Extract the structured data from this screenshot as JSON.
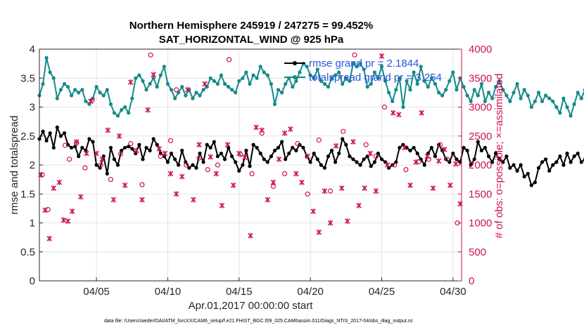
{
  "chart_data": {
    "type": "line",
    "title_line1": "Northern Hemisphere 245919 / 247275 = 99.452%",
    "title_line2": "SAT_HORIZONTAL_WIND @ 925 hPa",
    "xlabel": "Apr.01,2017 00:00:00 start",
    "ylabel_left": "rmse and totalspread",
    "ylabel_right": "# of obs: o=possible; ×=assimilated",
    "xlim": [
      1.0,
      30.6
    ],
    "ylim_left": [
      0,
      4
    ],
    "ylim_right": [
      0,
      4000
    ],
    "x_ticks": [
      5,
      10,
      15,
      20,
      25,
      30
    ],
    "x_tick_labels": [
      "04/05",
      "04/10",
      "04/15",
      "04/20",
      "04/25",
      "04/30"
    ],
    "y_left_ticks": [
      "0",
      "0.5",
      "1",
      "1.5",
      "2",
      "2.5",
      "3",
      "3.5",
      "4"
    ],
    "y_right_ticks": [
      "0",
      "500",
      "1000",
      "1500",
      "2000",
      "2500",
      "3000",
      "3500",
      "4000"
    ],
    "legend": {
      "rmse": "rmse grand pr = 2.1844",
      "spread": "totalspread grand pr = 3.254"
    },
    "footnote": "data file: /Users/raeder/DAI/ATM_forcXX/CAM6_setup/f.e21.FHIST_BGC.f09_025.CAM6assim.011/Diags_NTrS_2017-04/obs_diag_output.nc",
    "colors": {
      "rmse": "#000000",
      "spread": "#148a8a",
      "obs": "#cc1155"
    },
    "grid": true,
    "series": [
      {
        "name": "rmse",
        "axis": "left",
        "x_start": 1.0,
        "x_step": 0.25,
        "values": [
          2.45,
          2.58,
          2.42,
          2.55,
          2.3,
          2.65,
          2.5,
          2.55,
          2.35,
          2.3,
          2.32,
          2.15,
          2.3,
          2.25,
          2.45,
          2.4,
          2.0,
          1.95,
          2.15,
          1.85,
          2.3,
          2.1,
          2.0,
          2.25,
          2.3,
          2.32,
          2.28,
          2.2,
          2.35,
          2.1,
          2.3,
          2.25,
          2.45,
          2.35,
          2.2,
          2.15,
          2.05,
          2.2,
          2.1,
          2.0,
          2.25,
          2.05,
          1.95,
          2.0,
          1.95,
          2.2,
          2.05,
          2.35,
          2.3,
          2.4,
          2.15,
          2.2,
          2.1,
          2.3,
          2.15,
          2.05,
          1.9,
          2.0,
          2.25,
          1.98,
          2.35,
          2.3,
          2.2,
          2.1,
          2.05,
          2.15,
          2.25,
          2.3,
          2.4,
          2.1,
          2.2,
          2.3,
          2.25,
          2.35,
          2.3,
          2.15,
          2.05,
          2.2,
          2.1,
          2.0,
          1.95,
          2.15,
          2.25,
          2.05,
          2.2,
          2.45,
          2.35,
          2.15,
          2.1,
          2.05,
          2.0,
          2.1,
          2.15,
          1.98,
          2.05,
          2.2,
          2.1,
          2.05,
          1.95,
          2.0,
          2.05,
          2.3,
          2.35,
          2.3,
          2.25,
          2.3,
          2.2,
          2.1,
          2.0,
          2.2,
          2.3,
          2.15,
          2.35,
          2.25,
          2.1,
          2.05,
          2.2,
          2.1,
          2.05,
          2.3,
          2.25,
          2.0,
          2.1,
          2.4,
          2.25,
          2.3,
          2.15,
          2.05,
          2.2,
          2.1,
          2.05,
          2.15,
          1.95,
          2.0,
          1.9,
          2.0,
          1.8,
          1.85,
          1.65,
          1.7,
          1.95,
          2.05,
          2.1,
          1.9,
          2.0,
          2.05,
          2.15,
          2.0,
          2.2,
          2.05,
          2.15,
          2.2,
          2.05,
          2.1,
          2.3,
          2.15,
          2.25,
          2.2,
          2.3,
          2.15,
          2.1,
          2.25,
          2.0,
          2.2,
          2.1,
          2.3,
          2.2,
          2.35,
          2.15,
          2.1,
          2.2,
          2.05,
          2.1,
          2.0,
          2.3,
          2.05,
          2.1,
          2.08,
          2.1,
          2.05,
          2.0,
          2.1,
          2.05,
          2.0,
          1.95,
          2.25,
          2.3,
          2.2,
          2.35,
          2.3,
          2.4,
          2.45
        ]
      },
      {
        "name": "totalspread",
        "axis": "left",
        "x_start": 1.0,
        "x_step": 0.25,
        "values": [
          3.2,
          3.4,
          3.85,
          3.6,
          3.5,
          3.15,
          3.3,
          3.4,
          3.35,
          3.2,
          3.3,
          3.25,
          3.3,
          3.1,
          3.05,
          3.15,
          3.35,
          3.25,
          3.2,
          3.3,
          3.05,
          2.9,
          2.85,
          2.95,
          3.0,
          2.9,
          3.15,
          3.5,
          3.55,
          3.45,
          3.3,
          3.4,
          3.5,
          3.35,
          3.55,
          3.7,
          3.4,
          3.3,
          3.15,
          3.25,
          3.35,
          3.2,
          3.3,
          3.15,
          3.25,
          3.2,
          3.3,
          3.35,
          3.5,
          3.45,
          3.4,
          3.55,
          3.4,
          3.35,
          3.3,
          3.25,
          3.45,
          3.5,
          3.6,
          3.4,
          3.55,
          3.5,
          3.7,
          3.6,
          3.55,
          3.4,
          3.05,
          3.3,
          3.25,
          3.4,
          3.5,
          3.35,
          3.45,
          3.6,
          3.75,
          3.7,
          3.55,
          3.5,
          3.65,
          3.45,
          3.4,
          3.35,
          3.5,
          3.55,
          3.6,
          3.4,
          3.5,
          3.45,
          3.75,
          3.7,
          3.75,
          3.65,
          3.35,
          3.4,
          3.6,
          3.5,
          3.7,
          3.45,
          3.25,
          3.1,
          3.3,
          3.5,
          3.0,
          3.45,
          3.3,
          3.6,
          3.4,
          3.7,
          3.45,
          3.35,
          3.5,
          3.4,
          3.25,
          3.2,
          3.3,
          3.45,
          3.6,
          3.3,
          3.5,
          3.35,
          3.2,
          3.1,
          3.3,
          3.2,
          3.4,
          3.1,
          3.25,
          3.15,
          3.35,
          3.45,
          3.3,
          3.2,
          3.1,
          3.25,
          3.4,
          3.15,
          3.3,
          3.2,
          3.0,
          3.1,
          3.25,
          3.1,
          3.2,
          3.15,
          3.1,
          3.0,
          2.9,
          3.15,
          3.0,
          2.85,
          3.05,
          3.25,
          3.15,
          3.3,
          3.25,
          3.2,
          3.35,
          3.3,
          3.4,
          3.3,
          3.2,
          3.35,
          3.45,
          3.4,
          3.35,
          3.45,
          3.3,
          3.2,
          3.1,
          3.0,
          3.15,
          3.05,
          3.2,
          3.1,
          3.05,
          3.0,
          3.1,
          3.0,
          2.95,
          3.05,
          3.0,
          3.1,
          3.3,
          3.15
        ]
      },
      {
        "name": "obs_possible",
        "axis": "right",
        "marker": "o",
        "x": [
          1.2,
          1.6,
          2.8,
          3.1,
          3.6,
          4.2,
          4.7,
          5.3,
          6.0,
          6.7,
          7.4,
          8.2,
          8.8,
          9.5,
          10.2,
          10.6,
          11.3,
          12.2,
          12.8,
          13.5,
          14.3,
          15.1,
          15.9,
          16.6,
          17.4,
          18.2,
          19.1,
          19.8,
          20.6,
          21.4,
          22.3,
          23.1,
          23.9,
          24.6,
          25.2,
          25.9,
          26.7,
          27.6,
          28.3,
          29.1,
          29.6,
          30.3
        ],
        "values": [
          1830,
          1230,
          2340,
          2100,
          2380,
          1950,
          3120,
          2000,
          1750,
          2190,
          2370,
          1660,
          3900,
          2150,
          2420,
          3300,
          2000,
          2120,
          1920,
          2000,
          3820,
          2180,
          1850,
          2550,
          1630,
          1850,
          2370,
          1500,
          2430,
          1550,
          2580,
          3900,
          2350,
          2150,
          3000,
          2000,
          1920,
          2060,
          2100,
          2350,
          2100,
          1000
        ],
        "note": "o=possible and ×=assimilated are nearly coincident"
      },
      {
        "name": "obs_assimilated",
        "axis": "right",
        "marker": "x",
        "x": [
          1.1,
          1.4,
          1.7,
          2.0,
          2.4,
          2.7,
          3.0,
          3.3,
          3.6,
          3.9,
          4.3,
          4.6,
          5.0,
          5.4,
          5.8,
          6.2,
          6.6,
          7.0,
          7.4,
          7.8,
          8.2,
          8.6,
          9.0,
          9.4,
          9.8,
          10.2,
          10.6,
          11.0,
          11.4,
          11.8,
          12.2,
          12.6,
          13.0,
          13.4,
          13.8,
          14.2,
          14.6,
          15.0,
          15.4,
          15.8,
          16.2,
          16.6,
          17.0,
          17.4,
          17.8,
          18.2,
          18.6,
          19.0,
          19.4,
          19.8,
          20.2,
          20.6,
          21.0,
          21.4,
          21.8,
          22.2,
          22.6,
          23.0,
          23.4,
          23.8,
          24.2,
          24.6,
          25.0,
          25.4,
          25.8,
          26.2,
          26.6,
          27.0,
          27.4,
          27.8,
          28.2,
          28.6,
          29.0,
          29.4,
          29.8,
          30.2,
          30.5
        ],
        "values": [
          1830,
          1220,
          730,
          1600,
          1700,
          1050,
          1030,
          1200,
          2400,
          1450,
          2200,
          3100,
          2200,
          2100,
          2600,
          1400,
          2500,
          1650,
          3430,
          2250,
          1400,
          2950,
          3560,
          2280,
          2200,
          1850,
          1500,
          1800,
          3300,
          1400,
          2350,
          3400,
          2140,
          1850,
          1300,
          2350,
          1650,
          2200,
          2130,
          780,
          2650,
          2600,
          1400,
          1700,
          2100,
          2550,
          2620,
          1850,
          1700,
          2150,
          1200,
          840,
          1550,
          1000,
          2330,
          1600,
          1030,
          2400,
          1300,
          1600,
          2200,
          1550,
          3880,
          2000,
          2900,
          2870,
          2300,
          1650,
          2050,
          2900,
          2150,
          1600,
          2070,
          2270,
          1650,
          2020,
          1330
        ]
      }
    ]
  }
}
